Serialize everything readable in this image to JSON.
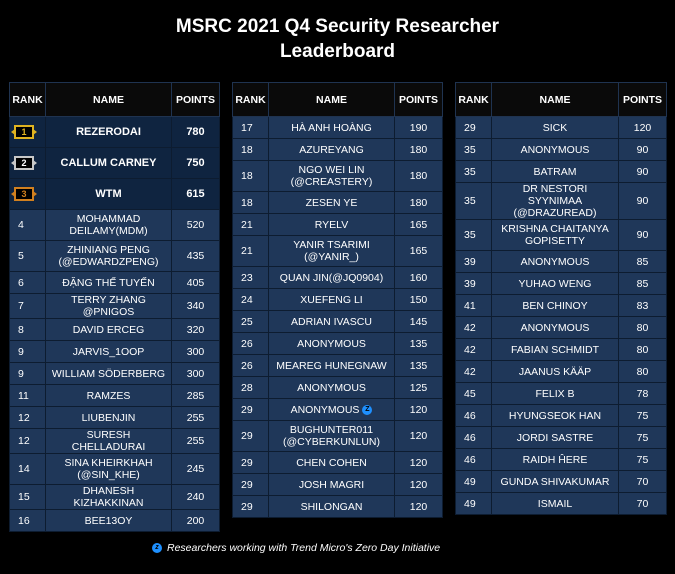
{
  "title_line1": "MSRC 2021 Q4 Security Researcher",
  "title_line2": "Leaderboard",
  "headers": {
    "rank": "RANK",
    "name": "NAME",
    "points": "POINTS"
  },
  "colors": {
    "gold": "#e0b320",
    "silver": "#c8c8c8",
    "bronze": "#d1801f",
    "row_bg": "#1f3759",
    "zdi_icon": "#1e90ff"
  },
  "columns": [
    [
      {
        "rank": "1",
        "name": "REZERODAI",
        "points": "780",
        "medal": "gold"
      },
      {
        "rank": "2",
        "name": "CALLUM CARNEY",
        "points": "750",
        "medal": "silver"
      },
      {
        "rank": "3",
        "name": "WTM",
        "points": "615",
        "medal": "bronze"
      },
      {
        "rank": "4",
        "name": "MOHAMMAD DEILAMY(MDM)",
        "points": "520"
      },
      {
        "rank": "5",
        "name": "ZHINIANG PENG (@EDWARDZPENG)",
        "points": "435"
      },
      {
        "rank": "6",
        "name": "ĐẶNG THẾ TUYẾN",
        "points": "405"
      },
      {
        "rank": "7",
        "name": "TERRY ZHANG @PNIGOS",
        "points": "340"
      },
      {
        "rank": "8",
        "name": "DAVID ERCEG",
        "points": "320"
      },
      {
        "rank": "9",
        "name": "JARVIS_1OOP",
        "points": "300"
      },
      {
        "rank": "9",
        "name": "WILLIAM SÖDERBERG",
        "points": "300"
      },
      {
        "rank": "11",
        "name": "RAMZES",
        "points": "285"
      },
      {
        "rank": "12",
        "name": "LIUBENJIN",
        "points": "255"
      },
      {
        "rank": "12",
        "name": "SURESH CHELLADURAI",
        "points": "255"
      },
      {
        "rank": "14",
        "name": "SINA KHEIRKHAH (@SIN_KHE)",
        "points": "245"
      },
      {
        "rank": "15",
        "name": "DHANESH KIZHAKKINAN",
        "points": "240"
      },
      {
        "rank": "16",
        "name": "BEE13OY",
        "points": "200"
      }
    ],
    [
      {
        "rank": "17",
        "name": "HÀ ANH HOÀNG",
        "points": "190"
      },
      {
        "rank": "18",
        "name": "AZUREYANG",
        "points": "180"
      },
      {
        "rank": "18",
        "name": "NGO WEI LIN (@CREASTERY)",
        "points": "180"
      },
      {
        "rank": "18",
        "name": "ZESEN YE",
        "points": "180"
      },
      {
        "rank": "21",
        "name": "RYELV",
        "points": "165"
      },
      {
        "rank": "21",
        "name": "YANIR TSARIMI (@YANIR_)",
        "points": "165"
      },
      {
        "rank": "23",
        "name": "QUAN JIN(@JQ0904)",
        "points": "160"
      },
      {
        "rank": "24",
        "name": "XUEFENG LI",
        "points": "150"
      },
      {
        "rank": "25",
        "name": "ADRIAN IVASCU",
        "points": "145"
      },
      {
        "rank": "26",
        "name": "ANONYMOUS",
        "points": "135"
      },
      {
        "rank": "26",
        "name": "MEAREG HUNEGNAW",
        "points": "135"
      },
      {
        "rank": "28",
        "name": "ANONYMOUS",
        "points": "125"
      },
      {
        "rank": "29",
        "name": "ANONYMOUS",
        "points": "120",
        "zdi": true
      },
      {
        "rank": "29",
        "name": "BUGHUNTER011 (@CYBERKUNLUN)",
        "points": "120"
      },
      {
        "rank": "29",
        "name": "CHEN COHEN",
        "points": "120"
      },
      {
        "rank": "29",
        "name": "JOSH MAGRI",
        "points": "120"
      },
      {
        "rank": "29",
        "name": "SHILONGAN",
        "points": "120"
      }
    ],
    [
      {
        "rank": "29",
        "name": "SICK",
        "points": "120"
      },
      {
        "rank": "35",
        "name": "ANONYMOUS",
        "points": "90"
      },
      {
        "rank": "35",
        "name": "BATRAM",
        "points": "90"
      },
      {
        "rank": "35",
        "name": "DR NESTORI SYYNIMAA (@DRAZUREAD)",
        "points": "90"
      },
      {
        "rank": "35",
        "name": "KRISHNA CHAITANYA GOPISETTY",
        "points": "90"
      },
      {
        "rank": "39",
        "name": "ANONYMOUS",
        "points": "85"
      },
      {
        "rank": "39",
        "name": "YUHAO WENG",
        "points": "85"
      },
      {
        "rank": "41",
        "name": "BEN CHINOY",
        "points": "83"
      },
      {
        "rank": "42",
        "name": "ANONYMOUS",
        "points": "80"
      },
      {
        "rank": "42",
        "name": "FABIAN SCHMIDT",
        "points": "80"
      },
      {
        "rank": "42",
        "name": "JAANUS KÄÄP",
        "points": "80"
      },
      {
        "rank": "45",
        "name": "FELIX B",
        "points": "78"
      },
      {
        "rank": "46",
        "name": "HYUNGSEOK HAN",
        "points": "75"
      },
      {
        "rank": "46",
        "name": "JORDI SASTRE",
        "points": "75"
      },
      {
        "rank": "46",
        "name": "RAIDH ĤERE",
        "points": "75"
      },
      {
        "rank": "49",
        "name": "GUNDA SHIVAKUMAR",
        "points": "70"
      },
      {
        "rank": "49",
        "name": "ISMAIL",
        "points": "70"
      }
    ]
  ],
  "footnote": "Researchers working with Trend Micro's Zero Day Initiative"
}
